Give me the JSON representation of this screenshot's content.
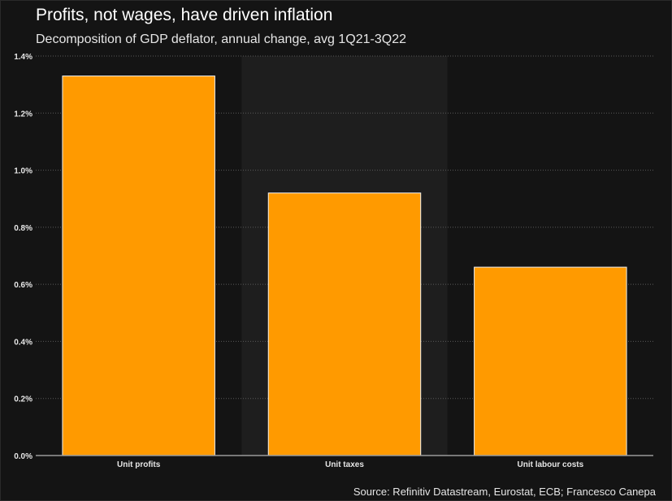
{
  "title": "Profits, not wages, have driven inflation",
  "subtitle": "Decomposition of GDP deflator, annual change, avg 1Q21-3Q22",
  "source": "Source: Refinitiv Datastream, Eurostat, ECB; Francesco Canepa",
  "colors": {
    "background": "#141414",
    "band": "#1e1e1e",
    "bar": "#ff9a00",
    "bar_outline": "#f2f2f2",
    "grid": "#5a5a5a",
    "axis": "#9a9a9a"
  },
  "chart_data": {
    "type": "bar",
    "title": "Profits, not wages, have driven inflation",
    "subtitle": "Decomposition of GDP deflator, annual change, avg 1Q21-3Q22",
    "categories": [
      "Unit profits",
      "Unit taxes",
      "Unit labour costs"
    ],
    "values": [
      1.33,
      0.92,
      0.66
    ],
    "unit": "%",
    "ylim": [
      0,
      1.4
    ],
    "yticks": [
      0,
      0.2,
      0.4,
      0.6,
      0.8,
      1.0,
      1.2,
      1.4
    ],
    "ytick_labels": [
      "0.0%",
      "0.2%",
      "0.4%",
      "0.6%",
      "0.8%",
      "1.0%",
      "1.2%",
      "1.4%"
    ],
    "grid": true,
    "legend": false,
    "xlabel": "",
    "ylabel": ""
  }
}
